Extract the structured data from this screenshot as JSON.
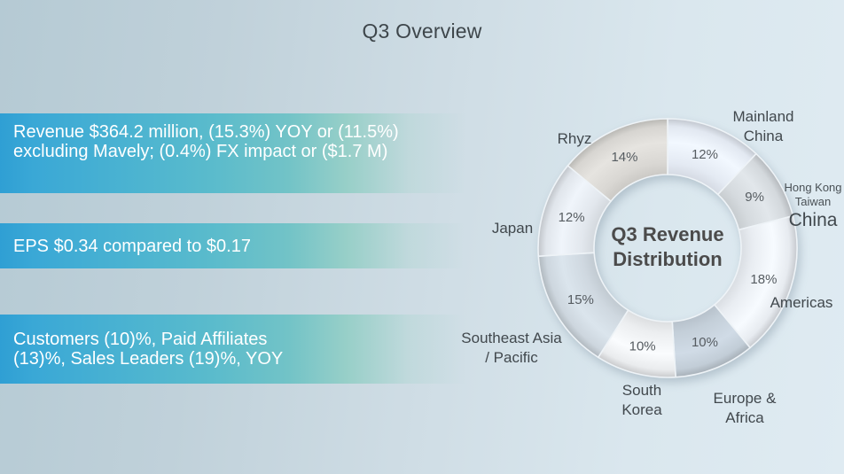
{
  "slide": {
    "title": "Q3 Overview"
  },
  "highlights": [
    {
      "lines": [
        "Revenue $364.2 million, (15.3%) YOY or (11.5%)",
        "excluding Mavely; (0.4%) FX impact or ($1.7 M)"
      ]
    },
    {
      "lines": [
        "EPS $0.34 compared to $0.17"
      ]
    },
    {
      "lines": [
        "Customers (10)%, Paid Affiliates",
        "(13)%, Sales Leaders (19)%, YOY"
      ]
    }
  ],
  "colors": {
    "bar_blue": "#35a3d7",
    "bar_teal": "#5fbdca",
    "background_left": "#b5cad4",
    "background_right": "#dfebf2",
    "bar_text": "#ffffff",
    "label_text": "#41484d",
    "title_text": "#3e464b"
  },
  "chart_data": {
    "type": "pie",
    "donut": true,
    "title": "Q3 Revenue Distribution",
    "title_lines": [
      "Q3 Revenue",
      "Distribution"
    ],
    "categories": [
      "Mainland China",
      "Hong Kong Taiwan China",
      "Americas",
      "Europe & Africa",
      "South Korea",
      "Southeast Asia / Pacific",
      "Japan",
      "Rhyz"
    ],
    "values": [
      12,
      9,
      18,
      10,
      10,
      15,
      12,
      14
    ],
    "unit": "%",
    "start_angle_deg": 0,
    "direction": "clockwise",
    "legend_position": "outside-callouts",
    "segment_colors": [
      "#e4eaf3",
      "#d5dade",
      "#e9edf2",
      "#c4cfd9",
      "#eceef0",
      "#cfd8e0",
      "#e2e7ed",
      "#d9d7d3"
    ],
    "labels": {
      "mainland_china": [
        "Mainland",
        "China"
      ],
      "hong_kong": {
        "small_lines": [
          "Hong Kong",
          "Taiwan"
        ],
        "large_line": "China"
      },
      "americas": [
        "Americas"
      ],
      "europe_africa": [
        "Europe &",
        "Africa"
      ],
      "south_korea": [
        "South",
        "Korea"
      ],
      "southeast_asia": [
        "Southeast Asia",
        "/ Pacific"
      ],
      "japan": [
        "Japan"
      ],
      "rhyz": [
        "Rhyz"
      ]
    }
  }
}
